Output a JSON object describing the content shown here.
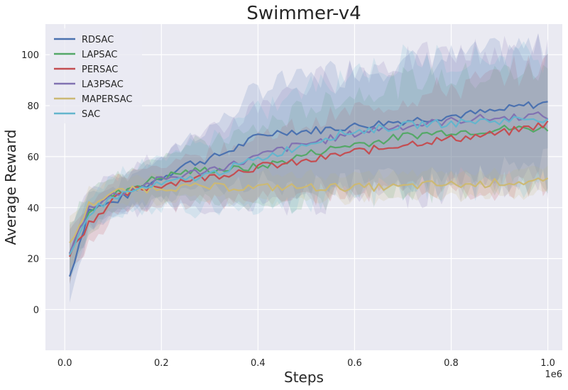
{
  "chart_data": {
    "type": "line",
    "title": "Swimmer-v4",
    "xlabel": "Steps",
    "ylabel": "Average Reward",
    "x_offset_label": "1e6",
    "xlim": [
      -0.04,
      1.03
    ],
    "ylim": [
      -16,
      112
    ],
    "x_ticks": [
      0.0,
      0.2,
      0.4,
      0.6,
      0.8,
      1.0
    ],
    "x_tick_labels": [
      "0.0",
      "0.2",
      "0.4",
      "0.6",
      "0.8",
      "1.0"
    ],
    "y_ticks": [
      0,
      20,
      40,
      60,
      80,
      100
    ],
    "y_tick_labels": [
      "0",
      "20",
      "40",
      "60",
      "80",
      "100"
    ],
    "grid": true,
    "legend_position": "top-left",
    "x": [
      0.01,
      0.05,
      0.1,
      0.15,
      0.2,
      0.25,
      0.3,
      0.35,
      0.4,
      0.45,
      0.5,
      0.55,
      0.6,
      0.65,
      0.7,
      0.75,
      0.8,
      0.85,
      0.9,
      0.95,
      1.0
    ],
    "series": [
      {
        "name": "RDSAC",
        "color": "#4c72b0",
        "values": [
          13,
          39,
          42,
          47,
          52,
          57,
          59,
          63,
          68,
          70,
          70,
          71,
          72,
          73,
          74,
          75,
          76,
          77,
          78,
          80,
          81
        ],
        "spread": [
          10,
          7,
          6,
          7,
          8,
          10,
          12,
          15,
          18,
          20,
          21,
          22,
          22,
          23,
          23,
          23,
          23,
          23,
          23,
          23,
          22
        ]
      },
      {
        "name": "LAPSAC",
        "color": "#55a868",
        "values": [
          23,
          39,
          45,
          49,
          52,
          54,
          55,
          55,
          56,
          58,
          61,
          63,
          65,
          66,
          68,
          69,
          70,
          70,
          71,
          71,
          71
        ],
        "spread": [
          12,
          8,
          7,
          8,
          9,
          10,
          11,
          13,
          15,
          17,
          18,
          19,
          20,
          21,
          21,
          22,
          22,
          22,
          22,
          22,
          22
        ]
      },
      {
        "name": "PERSAC",
        "color": "#c44e52",
        "values": [
          22,
          34,
          43,
          47,
          49,
          51,
          52,
          54,
          56,
          57,
          58,
          60,
          62,
          63,
          65,
          66,
          67,
          68,
          69,
          71,
          73
        ],
        "spread": [
          11,
          8,
          7,
          7,
          8,
          9,
          10,
          11,
          12,
          13,
          14,
          15,
          16,
          17,
          18,
          19,
          20,
          21,
          22,
          23,
          23
        ]
      },
      {
        "name": "LA3PSAC",
        "color": "#8172b2",
        "values": [
          22,
          40,
          45,
          48,
          51,
          53,
          55,
          57,
          60,
          63,
          65,
          67,
          69,
          71,
          72,
          73,
          74,
          75,
          75,
          76,
          76
        ],
        "spread": [
          11,
          8,
          8,
          9,
          10,
          12,
          14,
          17,
          20,
          22,
          23,
          24,
          25,
          25,
          26,
          26,
          26,
          26,
          26,
          26,
          26
        ]
      },
      {
        "name": "MAPERSAC",
        "color": "#ccb974",
        "values": [
          25,
          41,
          46,
          47,
          48,
          48,
          48,
          48,
          48,
          48,
          48,
          48,
          48,
          48,
          48,
          49,
          49,
          49,
          50,
          50,
          50
        ],
        "spread": [
          9,
          6,
          5,
          5,
          5,
          5,
          5,
          5,
          5,
          5,
          5,
          5,
          5,
          5,
          5,
          5,
          5,
          5,
          5,
          5,
          5
        ]
      },
      {
        "name": "SAC",
        "color": "#64b5cd",
        "values": [
          20,
          38,
          44,
          47,
          49,
          51,
          53,
          56,
          59,
          62,
          65,
          68,
          70,
          71,
          72,
          73,
          73,
          74,
          74,
          75,
          75
        ],
        "spread": [
          10,
          8,
          8,
          9,
          10,
          12,
          14,
          16,
          18,
          20,
          22,
          23,
          24,
          25,
          25,
          25,
          25,
          25,
          25,
          25,
          25
        ]
      }
    ]
  }
}
